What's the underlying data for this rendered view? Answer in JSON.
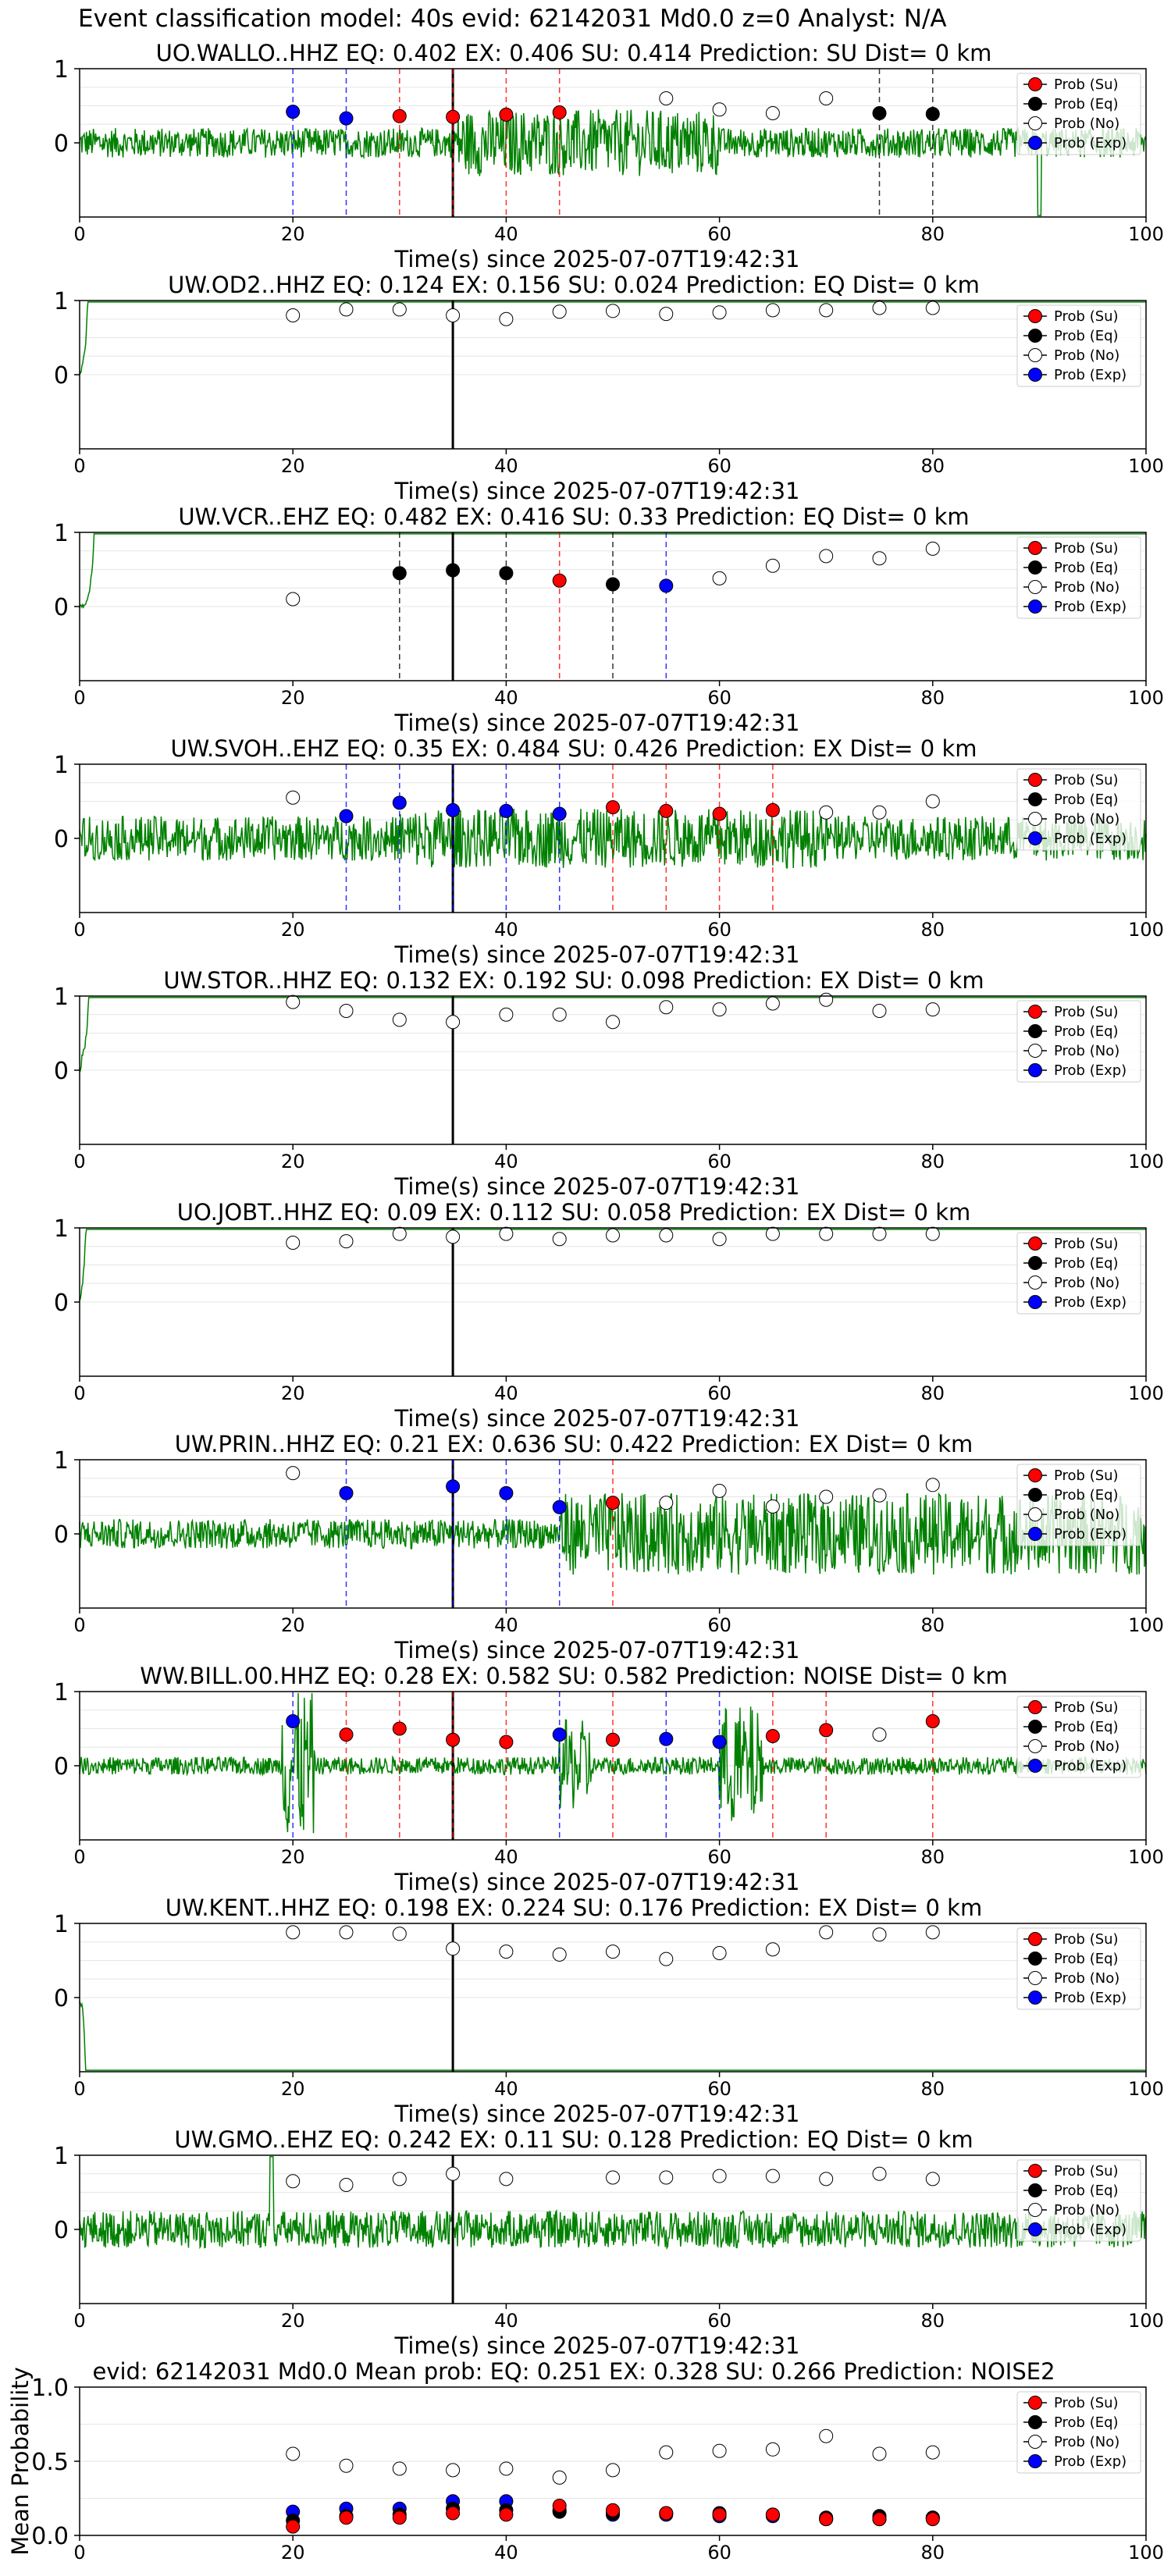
{
  "figure_title": "Event classification model: 40s evid: 62142031 Md0.0 z=0 Analyst: N/A",
  "legend_labels": [
    "Prob (Su)",
    "Prob (Eq)",
    "Prob (No)",
    "Prob (Exp)"
  ],
  "colors": {
    "su": "#ff0000",
    "eq": "#000000",
    "no": "#ffffff",
    "exp": "#0000ff",
    "trace": "#008000",
    "su_line": "#ff0000",
    "eq_line": "#000000",
    "exp_line": "#0000ff"
  },
  "chart_data": [
    {
      "type": "line",
      "title": "UO.WALLO..HHZ   EQ: 0.402   EX: 0.406   SU: 0.414   Prediction: SU    Dist= 0 km",
      "xlabel": "Time(s) since 2025-07-07T19:42:31",
      "ylabel": "",
      "xlim": [
        0,
        100
      ],
      "ylim": [
        -1,
        1
      ],
      "xticks": [
        0,
        20,
        40,
        60,
        80,
        100
      ],
      "yticks": [
        0,
        1
      ],
      "onset": 35,
      "points": [
        {
          "x": 20,
          "y": 0.42,
          "c": "exp"
        },
        {
          "x": 25,
          "y": 0.33,
          "c": "exp"
        },
        {
          "x": 30,
          "y": 0.36,
          "c": "su"
        },
        {
          "x": 35,
          "y": 0.35,
          "c": "su"
        },
        {
          "x": 40,
          "y": 0.38,
          "c": "su"
        },
        {
          "x": 45,
          "y": 0.41,
          "c": "su"
        },
        {
          "x": 55,
          "y": 0.6,
          "c": "no"
        },
        {
          "x": 60,
          "y": 0.45,
          "c": "no"
        },
        {
          "x": 65,
          "y": 0.4,
          "c": "no"
        },
        {
          "x": 70,
          "y": 0.6,
          "c": "no"
        },
        {
          "x": 75,
          "y": 0.4,
          "c": "eq"
        },
        {
          "x": 80,
          "y": 0.39,
          "c": "eq"
        }
      ]
    },
    {
      "type": "line",
      "title": "UW.OD2..HHZ   EQ: 0.124   EX: 0.156   SU: 0.024   Prediction: EQ    Dist= 0 km",
      "xlabel": "Time(s) since 2025-07-07T19:42:31",
      "ylabel": "",
      "xlim": [
        0,
        100
      ],
      "ylim": [
        -1,
        1
      ],
      "xticks": [
        0,
        20,
        40,
        60,
        80,
        100
      ],
      "yticks": [
        0,
        1
      ],
      "onset": 35,
      "points": [
        {
          "x": 20,
          "y": 0.8,
          "c": "no"
        },
        {
          "x": 25,
          "y": 0.88,
          "c": "no"
        },
        {
          "x": 30,
          "y": 0.88,
          "c": "no"
        },
        {
          "x": 35,
          "y": 0.8,
          "c": "no"
        },
        {
          "x": 40,
          "y": 0.75,
          "c": "no"
        },
        {
          "x": 45,
          "y": 0.85,
          "c": "no"
        },
        {
          "x": 50,
          "y": 0.86,
          "c": "no"
        },
        {
          "x": 55,
          "y": 0.82,
          "c": "no"
        },
        {
          "x": 60,
          "y": 0.84,
          "c": "no"
        },
        {
          "x": 65,
          "y": 0.87,
          "c": "no"
        },
        {
          "x": 70,
          "y": 0.87,
          "c": "no"
        },
        {
          "x": 75,
          "y": 0.9,
          "c": "no"
        },
        {
          "x": 80,
          "y": 0.9,
          "c": "no"
        }
      ]
    },
    {
      "type": "line",
      "title": "UW.VCR..EHZ   EQ: 0.482   EX: 0.416   SU: 0.33   Prediction: EQ    Dist= 0 km",
      "xlabel": "Time(s) since 2025-07-07T19:42:31",
      "ylabel": "",
      "xlim": [
        0,
        100
      ],
      "ylim": [
        -1,
        1
      ],
      "xticks": [
        0,
        20,
        40,
        60,
        80,
        100
      ],
      "yticks": [
        0,
        1
      ],
      "onset": 35,
      "points": [
        {
          "x": 20,
          "y": 0.1,
          "c": "no"
        },
        {
          "x": 30,
          "y": 0.45,
          "c": "eq"
        },
        {
          "x": 35,
          "y": 0.49,
          "c": "eq"
        },
        {
          "x": 40,
          "y": 0.45,
          "c": "eq"
        },
        {
          "x": 45,
          "y": 0.35,
          "c": "su"
        },
        {
          "x": 50,
          "y": 0.3,
          "c": "eq"
        },
        {
          "x": 55,
          "y": 0.28,
          "c": "exp"
        },
        {
          "x": 60,
          "y": 0.38,
          "c": "no"
        },
        {
          "x": 65,
          "y": 0.55,
          "c": "no"
        },
        {
          "x": 70,
          "y": 0.68,
          "c": "no"
        },
        {
          "x": 75,
          "y": 0.65,
          "c": "no"
        },
        {
          "x": 80,
          "y": 0.78,
          "c": "no"
        }
      ]
    },
    {
      "type": "line",
      "title": "UW.SVOH..EHZ   EQ: 0.35   EX: 0.484   SU: 0.426   Prediction: EX    Dist= 0 km",
      "xlabel": "Time(s) since 2025-07-07T19:42:31",
      "ylabel": "",
      "xlim": [
        0,
        100
      ],
      "ylim": [
        -1,
        1
      ],
      "xticks": [
        0,
        20,
        40,
        60,
        80,
        100
      ],
      "yticks": [
        0,
        1
      ],
      "onset": 35,
      "points": [
        {
          "x": 20,
          "y": 0.55,
          "c": "no"
        },
        {
          "x": 25,
          "y": 0.3,
          "c": "exp"
        },
        {
          "x": 30,
          "y": 0.48,
          "c": "exp"
        },
        {
          "x": 35,
          "y": 0.38,
          "c": "exp"
        },
        {
          "x": 40,
          "y": 0.37,
          "c": "exp"
        },
        {
          "x": 45,
          "y": 0.33,
          "c": "exp"
        },
        {
          "x": 50,
          "y": 0.42,
          "c": "su"
        },
        {
          "x": 55,
          "y": 0.37,
          "c": "su"
        },
        {
          "x": 60,
          "y": 0.33,
          "c": "su"
        },
        {
          "x": 65,
          "y": 0.38,
          "c": "su"
        },
        {
          "x": 70,
          "y": 0.35,
          "c": "no"
        },
        {
          "x": 75,
          "y": 0.35,
          "c": "no"
        },
        {
          "x": 80,
          "y": 0.5,
          "c": "no"
        }
      ]
    },
    {
      "type": "line",
      "title": "UW.STOR..HHZ   EQ: 0.132   EX: 0.192   SU: 0.098   Prediction: EX    Dist= 0 km",
      "xlabel": "Time(s) since 2025-07-07T19:42:31",
      "ylabel": "",
      "xlim": [
        0,
        100
      ],
      "ylim": [
        -1,
        1
      ],
      "xticks": [
        0,
        20,
        40,
        60,
        80,
        100
      ],
      "yticks": [
        0,
        1
      ],
      "onset": 35,
      "points": [
        {
          "x": 20,
          "y": 0.92,
          "c": "no"
        },
        {
          "x": 25,
          "y": 0.8,
          "c": "no"
        },
        {
          "x": 30,
          "y": 0.68,
          "c": "no"
        },
        {
          "x": 35,
          "y": 0.65,
          "c": "no"
        },
        {
          "x": 40,
          "y": 0.75,
          "c": "no"
        },
        {
          "x": 45,
          "y": 0.75,
          "c": "no"
        },
        {
          "x": 50,
          "y": 0.65,
          "c": "no"
        },
        {
          "x": 55,
          "y": 0.85,
          "c": "no"
        },
        {
          "x": 60,
          "y": 0.82,
          "c": "no"
        },
        {
          "x": 65,
          "y": 0.9,
          "c": "no"
        },
        {
          "x": 70,
          "y": 0.95,
          "c": "no"
        },
        {
          "x": 75,
          "y": 0.8,
          "c": "no"
        },
        {
          "x": 80,
          "y": 0.82,
          "c": "no"
        }
      ]
    },
    {
      "type": "line",
      "title": "UO.JOBT..HHZ   EQ: 0.09   EX: 0.112   SU: 0.058   Prediction: EX    Dist= 0 km",
      "xlabel": "Time(s) since 2025-07-07T19:42:31",
      "ylabel": "",
      "xlim": [
        0,
        100
      ],
      "ylim": [
        -1,
        1
      ],
      "xticks": [
        0,
        20,
        40,
        60,
        80,
        100
      ],
      "yticks": [
        0,
        1
      ],
      "onset": 35,
      "points": [
        {
          "x": 20,
          "y": 0.8,
          "c": "no"
        },
        {
          "x": 25,
          "y": 0.82,
          "c": "no"
        },
        {
          "x": 30,
          "y": 0.92,
          "c": "no"
        },
        {
          "x": 35,
          "y": 0.88,
          "c": "no"
        },
        {
          "x": 40,
          "y": 0.92,
          "c": "no"
        },
        {
          "x": 45,
          "y": 0.85,
          "c": "no"
        },
        {
          "x": 50,
          "y": 0.9,
          "c": "no"
        },
        {
          "x": 55,
          "y": 0.9,
          "c": "no"
        },
        {
          "x": 60,
          "y": 0.85,
          "c": "no"
        },
        {
          "x": 65,
          "y": 0.92,
          "c": "no"
        },
        {
          "x": 70,
          "y": 0.92,
          "c": "no"
        },
        {
          "x": 75,
          "y": 0.92,
          "c": "no"
        },
        {
          "x": 80,
          "y": 0.92,
          "c": "no"
        }
      ]
    },
    {
      "type": "line",
      "title": "UW.PRIN..HHZ   EQ: 0.21   EX: 0.636   SU: 0.422   Prediction: EX    Dist= 0 km",
      "xlabel": "Time(s) since 2025-07-07T19:42:31",
      "ylabel": "",
      "xlim": [
        0,
        100
      ],
      "ylim": [
        -1,
        1
      ],
      "xticks": [
        0,
        20,
        40,
        60,
        80,
        100
      ],
      "yticks": [
        0,
        1
      ],
      "onset": 35,
      "points": [
        {
          "x": 20,
          "y": 0.82,
          "c": "no"
        },
        {
          "x": 25,
          "y": 0.55,
          "c": "exp"
        },
        {
          "x": 35,
          "y": 0.64,
          "c": "exp"
        },
        {
          "x": 40,
          "y": 0.55,
          "c": "exp"
        },
        {
          "x": 45,
          "y": 0.36,
          "c": "exp"
        },
        {
          "x": 50,
          "y": 0.42,
          "c": "su"
        },
        {
          "x": 55,
          "y": 0.42,
          "c": "no"
        },
        {
          "x": 60,
          "y": 0.58,
          "c": "no"
        },
        {
          "x": 65,
          "y": 0.37,
          "c": "no"
        },
        {
          "x": 70,
          "y": 0.5,
          "c": "no"
        },
        {
          "x": 75,
          "y": 0.52,
          "c": "no"
        },
        {
          "x": 80,
          "y": 0.66,
          "c": "no"
        }
      ]
    },
    {
      "type": "line",
      "title": "WW.BILL.00.HHZ   EQ: 0.28   EX: 0.582   SU: 0.582   Prediction: NOISE    Dist= 0 km",
      "xlabel": "Time(s) since 2025-07-07T19:42:31",
      "ylabel": "",
      "xlim": [
        0,
        100
      ],
      "ylim": [
        -1,
        1
      ],
      "xticks": [
        0,
        20,
        40,
        60,
        80,
        100
      ],
      "yticks": [
        0,
        1
      ],
      "onset": 35,
      "points": [
        {
          "x": 20,
          "y": 0.6,
          "c": "exp"
        },
        {
          "x": 25,
          "y": 0.42,
          "c": "su"
        },
        {
          "x": 30,
          "y": 0.5,
          "c": "su"
        },
        {
          "x": 35,
          "y": 0.35,
          "c": "su"
        },
        {
          "x": 40,
          "y": 0.32,
          "c": "su"
        },
        {
          "x": 45,
          "y": 0.42,
          "c": "exp"
        },
        {
          "x": 50,
          "y": 0.35,
          "c": "su"
        },
        {
          "x": 55,
          "y": 0.36,
          "c": "exp"
        },
        {
          "x": 60,
          "y": 0.32,
          "c": "exp"
        },
        {
          "x": 65,
          "y": 0.4,
          "c": "su"
        },
        {
          "x": 70,
          "y": 0.48,
          "c": "su"
        },
        {
          "x": 75,
          "y": 0.42,
          "c": "no"
        },
        {
          "x": 80,
          "y": 0.6,
          "c": "su"
        }
      ]
    },
    {
      "type": "line",
      "title": "UW.KENT..HHZ   EQ: 0.198   EX: 0.224   SU: 0.176   Prediction: EX    Dist= 0 km",
      "xlabel": "Time(s) since 2025-07-07T19:42:31",
      "ylabel": "",
      "xlim": [
        0,
        100
      ],
      "ylim": [
        -1,
        1
      ],
      "xticks": [
        0,
        20,
        40,
        60,
        80,
        100
      ],
      "yticks": [
        0,
        1
      ],
      "onset": 35,
      "points": [
        {
          "x": 20,
          "y": 0.88,
          "c": "no"
        },
        {
          "x": 25,
          "y": 0.88,
          "c": "no"
        },
        {
          "x": 30,
          "y": 0.86,
          "c": "no"
        },
        {
          "x": 35,
          "y": 0.66,
          "c": "no"
        },
        {
          "x": 40,
          "y": 0.62,
          "c": "no"
        },
        {
          "x": 45,
          "y": 0.58,
          "c": "no"
        },
        {
          "x": 50,
          "y": 0.62,
          "c": "no"
        },
        {
          "x": 55,
          "y": 0.52,
          "c": "no"
        },
        {
          "x": 60,
          "y": 0.6,
          "c": "no"
        },
        {
          "x": 65,
          "y": 0.65,
          "c": "no"
        },
        {
          "x": 70,
          "y": 0.88,
          "c": "no"
        },
        {
          "x": 75,
          "y": 0.85,
          "c": "no"
        },
        {
          "x": 80,
          "y": 0.88,
          "c": "no"
        }
      ]
    },
    {
      "type": "line",
      "title": "UW.GMO..EHZ   EQ: 0.242   EX: 0.11   SU: 0.128   Prediction: EQ    Dist= 0 km",
      "xlabel": "Time(s) since 2025-07-07T19:42:31",
      "ylabel": "",
      "xlim": [
        0,
        100
      ],
      "ylim": [
        -1,
        1
      ],
      "xticks": [
        0,
        20,
        40,
        60,
        80,
        100
      ],
      "yticks": [
        0,
        1
      ],
      "onset": 35,
      "points": [
        {
          "x": 20,
          "y": 0.65,
          "c": "no"
        },
        {
          "x": 25,
          "y": 0.6,
          "c": "no"
        },
        {
          "x": 30,
          "y": 0.68,
          "c": "no"
        },
        {
          "x": 35,
          "y": 0.75,
          "c": "no"
        },
        {
          "x": 40,
          "y": 0.68,
          "c": "no"
        },
        {
          "x": 50,
          "y": 0.7,
          "c": "no"
        },
        {
          "x": 55,
          "y": 0.7,
          "c": "no"
        },
        {
          "x": 60,
          "y": 0.72,
          "c": "no"
        },
        {
          "x": 65,
          "y": 0.72,
          "c": "no"
        },
        {
          "x": 70,
          "y": 0.68,
          "c": "no"
        },
        {
          "x": 75,
          "y": 0.75,
          "c": "no"
        },
        {
          "x": 80,
          "y": 0.68,
          "c": "no"
        }
      ]
    },
    {
      "type": "scatter",
      "title": "evid: 62142031  Md0.0   Mean prob:   EQ: 0.251   EX: 0.328   SU: 0.266   Prediction: NOISE2",
      "xlabel": "",
      "ylabel": "Mean Probability",
      "xlim": [
        0,
        100
      ],
      "ylim": [
        0,
        1
      ],
      "xticks": [
        0,
        20,
        40,
        60,
        80,
        100
      ],
      "yticks": [
        0.0,
        0.5,
        1.0
      ],
      "x": [
        20,
        25,
        30,
        35,
        40,
        45,
        50,
        55,
        60,
        65,
        70,
        75,
        80
      ],
      "series": [
        {
          "name": "Prob (No)",
          "c": "no",
          "values": [
            0.55,
            0.47,
            0.45,
            0.44,
            0.45,
            0.39,
            0.44,
            0.56,
            0.57,
            0.58,
            0.67,
            0.55,
            0.56
          ]
        },
        {
          "name": "Prob (Exp)",
          "c": "exp",
          "values": [
            0.16,
            0.18,
            0.18,
            0.23,
            0.23,
            0.17,
            0.14,
            0.14,
            0.13,
            0.13,
            0.11,
            0.11,
            0.12
          ]
        },
        {
          "name": "Prob (Eq)",
          "c": "eq",
          "values": [
            0.1,
            0.13,
            0.14,
            0.18,
            0.17,
            0.16,
            0.15,
            0.15,
            0.15,
            0.14,
            0.12,
            0.13,
            0.12
          ]
        },
        {
          "name": "Prob (Su)",
          "c": "su",
          "values": [
            0.06,
            0.12,
            0.12,
            0.15,
            0.14,
            0.2,
            0.17,
            0.15,
            0.14,
            0.14,
            0.11,
            0.11,
            0.11
          ]
        }
      ]
    }
  ]
}
